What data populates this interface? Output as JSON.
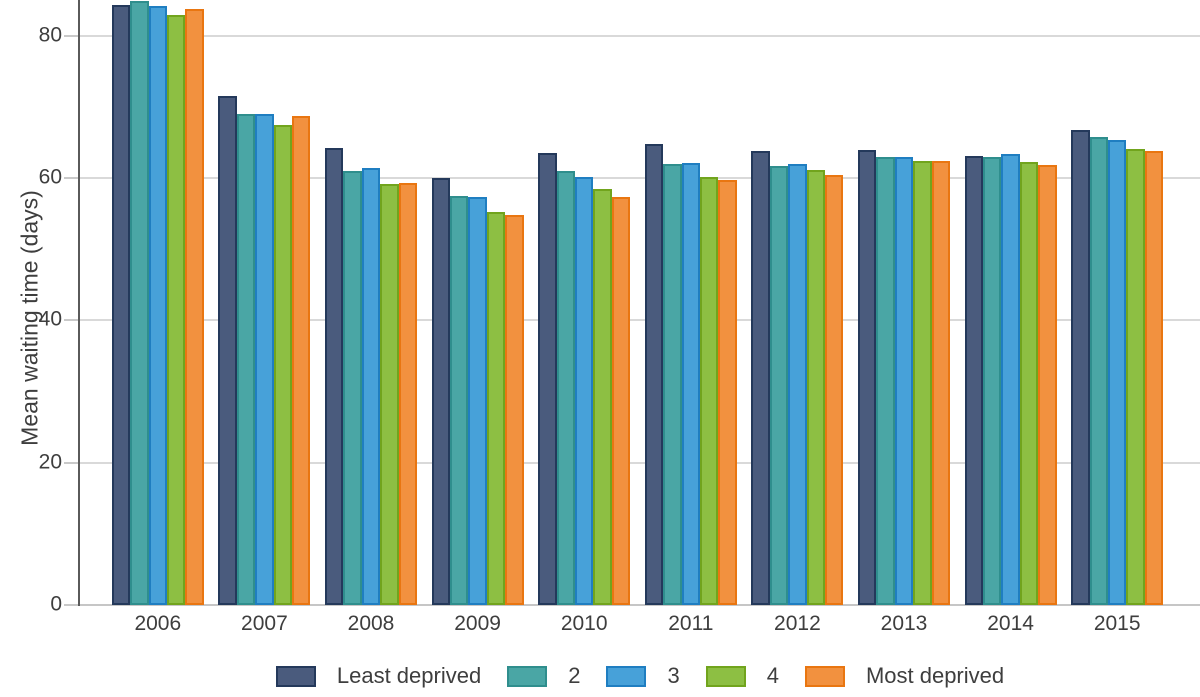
{
  "chart_data": {
    "type": "bar",
    "title": "",
    "xlabel": "",
    "ylabel": "Mean waiting time (days)",
    "ylim": [
      0,
      85
    ],
    "yticks": [
      0,
      20,
      40,
      60,
      80
    ],
    "grid": true,
    "legend_position": "bottom",
    "categories": [
      "2006",
      "2007",
      "2008",
      "2009",
      "2010",
      "2011",
      "2012",
      "2013",
      "2014",
      "2015"
    ],
    "series": [
      {
        "name": "Least deprived",
        "color": "#4a5b7d",
        "border_color": "#24395b",
        "values": [
          84.3,
          71.5,
          64.2,
          60.0,
          63.5,
          64.8,
          63.8,
          63.9,
          63.1,
          66.8
        ]
      },
      {
        "name": "2",
        "color": "#4aa6a5",
        "border_color": "#2f8e8d",
        "values": [
          84.9,
          69.0,
          61.0,
          57.5,
          61.0,
          61.9,
          61.7,
          63.0,
          62.9,
          65.8
        ]
      },
      {
        "name": "3",
        "color": "#47a1d9",
        "border_color": "#1f7ec1",
        "values": [
          84.2,
          69.0,
          61.4,
          57.3,
          60.2,
          62.1,
          62.0,
          63.0,
          63.4,
          65.4
        ]
      },
      {
        "name": "4",
        "color": "#8dbf43",
        "border_color": "#71a41d",
        "values": [
          82.9,
          67.4,
          59.2,
          55.2,
          58.4,
          60.2,
          61.1,
          62.4,
          62.2,
          64.1
        ]
      },
      {
        "name": "Most deprived",
        "color": "#f2913f",
        "border_color": "#e97611",
        "values": [
          83.7,
          68.7,
          59.3,
          54.8,
          57.3,
          59.7,
          60.4,
          62.4,
          61.8,
          63.8
        ]
      }
    ]
  }
}
